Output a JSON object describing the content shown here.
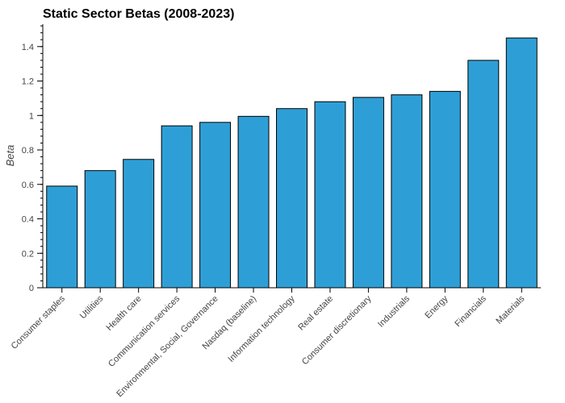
{
  "chart_data": {
    "type": "bar",
    "title": "Static Sector Betas (2008-2023)",
    "xlabel": "",
    "ylabel": "Beta",
    "ylim": [
      0,
      1.53
    ],
    "yticks": [
      0,
      0.2,
      0.4,
      0.6,
      0.8,
      1,
      1.2,
      1.4
    ],
    "ytick_labels": [
      "0",
      "0.2",
      "0.4",
      "0.6",
      "0.8",
      "1",
      "1.2",
      "1.4"
    ],
    "categories": [
      "Consumer staples",
      "Utilities",
      "Health care",
      "Communication services",
      "Environmental, Social, Governance",
      "Nasdaq (baseline)",
      "Information technology",
      "Real estate",
      "Consumer discretionary",
      "Industrials",
      "Energy",
      "Financials",
      "Materials"
    ],
    "values": [
      0.59,
      0.68,
      0.745,
      0.94,
      0.96,
      0.995,
      1.04,
      1.08,
      1.105,
      1.12,
      1.14,
      1.32,
      1.45
    ],
    "bar_color": "#2e9fd6",
    "grid": false
  }
}
